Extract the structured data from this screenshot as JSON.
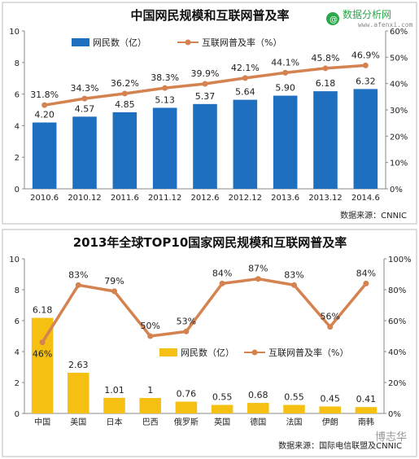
{
  "logo": {
    "text": "数据分析网",
    "sub": "www.afenxi.com"
  },
  "watermark": "博志华",
  "colors": {
    "bar1": "#1f6fc1",
    "bar2": "#f5c012",
    "line": "#d4824f",
    "axis": "#888888",
    "border": "#bbbbbb"
  },
  "chart_data": [
    {
      "type": "bar",
      "title": "中国网民规模和互联网普及率",
      "categories": [
        "2010.6",
        "2010.12",
        "2011.6",
        "2011.12",
        "2012.6",
        "2012.12",
        "2013.6",
        "2013.12",
        "2014.6"
      ],
      "series": [
        {
          "name": "网民数（亿）",
          "type": "bar",
          "axis": "left",
          "values": [
            4.2,
            4.57,
            4.85,
            5.13,
            5.37,
            5.64,
            5.9,
            6.18,
            6.32
          ],
          "labels": [
            "4.20",
            "4.57",
            "4.85",
            "5.13",
            "5.37",
            "5.64",
            "5.90",
            "6.18",
            "6.32"
          ]
        },
        {
          "name": "互联网普及率（%）",
          "type": "line",
          "axis": "right",
          "values": [
            31.8,
            34.3,
            36.2,
            38.3,
            39.9,
            42.1,
            44.1,
            45.8,
            46.9
          ],
          "labels": [
            "31.8%",
            "34.3%",
            "36.2%",
            "38.3%",
            "39.9%",
            "42.1%",
            "44.1%",
            "45.8%",
            "46.9%"
          ]
        }
      ],
      "ylim_left": [
        0,
        10
      ],
      "yticks_left": [
        "0",
        "2",
        "4",
        "6",
        "8",
        "10"
      ],
      "ylim_right": [
        0,
        60
      ],
      "yticks_right": [
        "0%",
        "10%",
        "20%",
        "30%",
        "40%",
        "50%",
        "60%"
      ],
      "legend_position": "top",
      "source": "数据来源：CNNIC"
    },
    {
      "type": "bar",
      "title": "2013年全球TOP10国家网民规模和互联网普及率",
      "categories": [
        "中国",
        "美国",
        "日本",
        "巴西",
        "俄罗斯",
        "英国",
        "德国",
        "法国",
        "伊朗",
        "南韩"
      ],
      "series": [
        {
          "name": "网民数（亿）",
          "type": "bar",
          "axis": "left",
          "values": [
            6.18,
            2.63,
            1.01,
            1.0,
            0.76,
            0.55,
            0.68,
            0.55,
            0.45,
            0.41
          ],
          "labels": [
            "6.18",
            "2.63",
            "1.01",
            "1",
            "0.76",
            "0.55",
            "0.68",
            "0.55",
            "0.45",
            "0.41"
          ]
        },
        {
          "name": "互联网普及率（%）",
          "type": "line",
          "axis": "right",
          "values": [
            46,
            83,
            79,
            50,
            53,
            84,
            87,
            83,
            56,
            84
          ],
          "labels": [
            "46%",
            "83%",
            "79%",
            "50%",
            "53%",
            "84%",
            "87%",
            "83%",
            "56%",
            "84%"
          ]
        }
      ],
      "ylim_left": [
        0,
        10
      ],
      "yticks_left": [
        "0",
        "2",
        "4",
        "6",
        "8",
        "10"
      ],
      "ylim_right": [
        0,
        100
      ],
      "yticks_right": [
        "0%",
        "20%",
        "40%",
        "60%",
        "80%",
        "100%"
      ],
      "legend_position": "center",
      "source": "数据来源：国际电信联盟及CNNIC"
    }
  ]
}
